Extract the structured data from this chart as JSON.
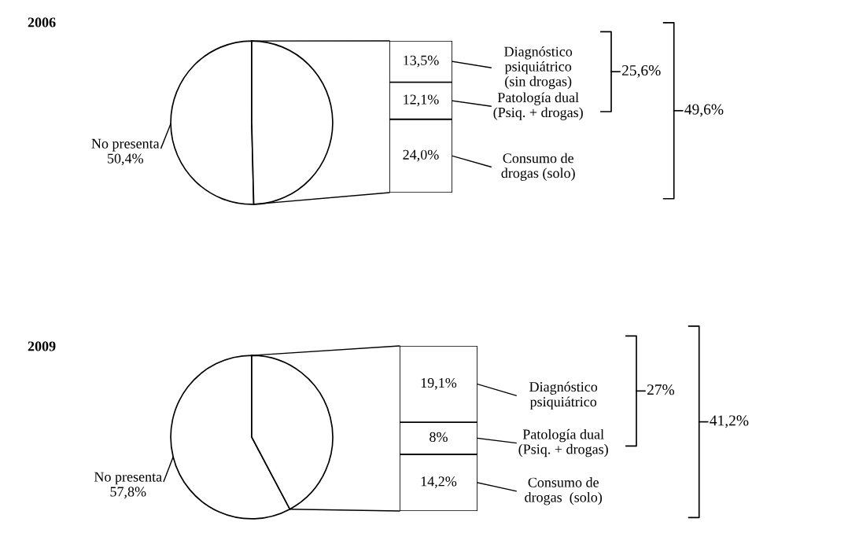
{
  "chart_data": [
    {
      "type": "pie",
      "title": "2006",
      "categories": [
        "No presenta",
        null
      ],
      "values": [
        50.4,
        49.6
      ],
      "colors": [
        "#ffffff",
        "#ffffff"
      ],
      "value_labels": [
        "50,4%",
        null
      ]
    },
    {
      "type": "bar",
      "stacked": true,
      "legend": "right",
      "categories": [
        null
      ],
      "series": [
        {
          "name": "Consumo de\ndrogas (solo)",
          "color": "#ffffff",
          "values": [
            24.0
          ],
          "value_labels": [
            "24,0%"
          ]
        },
        {
          "name": "Patología dual\n(Psiq. + drogas)",
          "color": "#ffffff",
          "values": [
            12.1
          ],
          "value_labels": [
            "12,1%"
          ]
        },
        {
          "name": "Diagnóstico\npsiquiátrico\n(sin drogas)",
          "color": "#ffffff",
          "values": [
            13.5
          ],
          "value_labels": [
            "13,5%"
          ]
        }
      ],
      "annotations": [
        "25,6%",
        "49,6%"
      ]
    },
    {
      "type": "pie",
      "title": "2009",
      "categories": [
        "No presenta",
        null
      ],
      "values": [
        57.8,
        42.2
      ],
      "colors": [
        "#ffffff",
        "#ffffff"
      ],
      "value_labels": [
        "57,8%",
        null
      ]
    },
    {
      "type": "bar",
      "stacked": true,
      "legend": "right",
      "categories": [
        null
      ],
      "series": [
        {
          "name": "Consumo de\ndrogas  (solo)",
          "color": "#ffffff",
          "values": [
            14.2
          ],
          "value_labels": [
            "14,2%"
          ]
        },
        {
          "name": "Patología dual\n(Psiq. + drogas)",
          "color": "#ffffff",
          "values": [
            8
          ],
          "value_labels": [
            "8%"
          ]
        },
        {
          "name": "Diagnóstico\npsiquiátrico",
          "color": "#ffffff",
          "values": [
            19.1
          ],
          "value_labels": [
            "19,1%"
          ]
        }
      ],
      "annotations": [
        "27%",
        "41,2%"
      ]
    }
  ]
}
